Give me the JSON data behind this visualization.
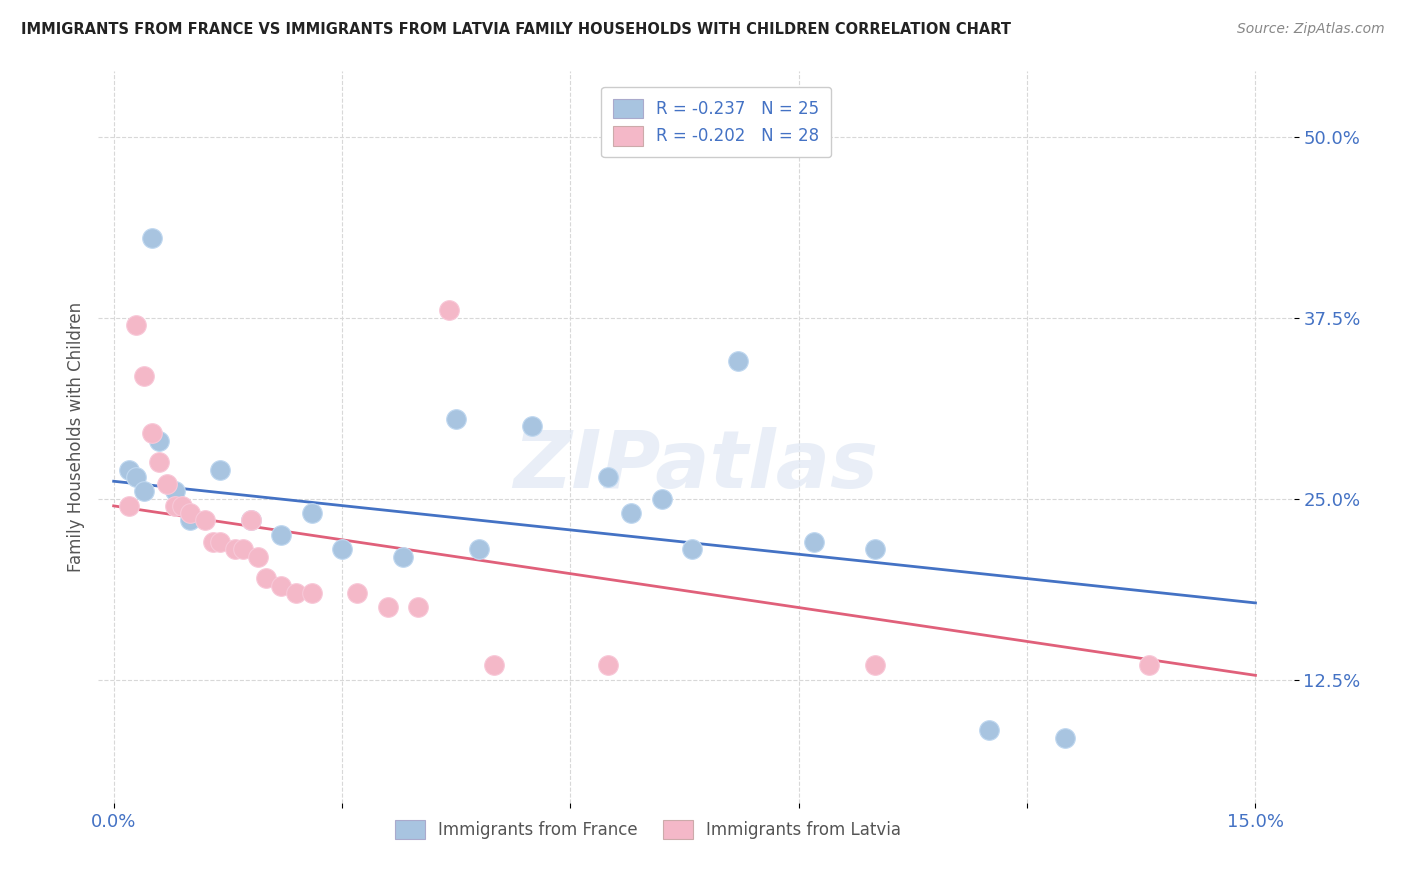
{
  "title": "IMMIGRANTS FROM FRANCE VS IMMIGRANTS FROM LATVIA FAMILY HOUSEHOLDS WITH CHILDREN CORRELATION CHART",
  "source": "Source: ZipAtlas.com",
  "ylabel": "Family Households with Children",
  "x_ticks": [
    0.0,
    0.03,
    0.06,
    0.09,
    0.12,
    0.15
  ],
  "x_tick_labels": [
    "0.0%",
    "",
    "",
    "",
    "",
    "15.0%"
  ],
  "y_ticks": [
    0.125,
    0.25,
    0.375,
    0.5
  ],
  "y_tick_labels": [
    "12.5%",
    "25.0%",
    "37.5%",
    "50.0%"
  ],
  "xlim": [
    -0.002,
    0.155
  ],
  "ylim": [
    0.04,
    0.545
  ],
  "france_color": "#a8c4e0",
  "latvia_color": "#f4b8c8",
  "france_line_color": "#4472c4",
  "latvia_line_color": "#e0607a",
  "france_R": -0.237,
  "france_N": 25,
  "latvia_R": -0.202,
  "latvia_N": 28,
  "france_x": [
    0.002,
    0.003,
    0.004,
    0.005,
    0.006,
    0.008,
    0.01,
    0.014,
    0.018,
    0.022,
    0.026,
    0.03,
    0.038,
    0.045,
    0.048,
    0.055,
    0.065,
    0.068,
    0.072,
    0.076,
    0.082,
    0.092,
    0.1,
    0.115,
    0.125
  ],
  "france_y": [
    0.27,
    0.265,
    0.255,
    0.43,
    0.29,
    0.255,
    0.235,
    0.27,
    0.235,
    0.225,
    0.24,
    0.215,
    0.21,
    0.305,
    0.215,
    0.3,
    0.265,
    0.24,
    0.25,
    0.215,
    0.345,
    0.22,
    0.215,
    0.09,
    0.085
  ],
  "latvia_x": [
    0.002,
    0.003,
    0.004,
    0.005,
    0.006,
    0.007,
    0.008,
    0.009,
    0.01,
    0.012,
    0.013,
    0.014,
    0.016,
    0.017,
    0.018,
    0.019,
    0.02,
    0.022,
    0.024,
    0.026,
    0.032,
    0.036,
    0.04,
    0.044,
    0.05,
    0.065,
    0.1,
    0.136
  ],
  "latvia_y": [
    0.245,
    0.37,
    0.335,
    0.295,
    0.275,
    0.26,
    0.245,
    0.245,
    0.24,
    0.235,
    0.22,
    0.22,
    0.215,
    0.215,
    0.235,
    0.21,
    0.195,
    0.19,
    0.185,
    0.185,
    0.185,
    0.175,
    0.175,
    0.38,
    0.135,
    0.135,
    0.135,
    0.135
  ],
  "france_line_x0": 0.0,
  "france_line_y0": 0.262,
  "france_line_x1": 0.15,
  "france_line_y1": 0.178,
  "latvia_line_x0": 0.0,
  "latvia_line_y0": 0.245,
  "latvia_line_x1": 0.15,
  "latvia_line_y1": 0.128,
  "watermark": "ZIPatlas",
  "grid_color": "#d8d8d8",
  "background_color": "#ffffff"
}
